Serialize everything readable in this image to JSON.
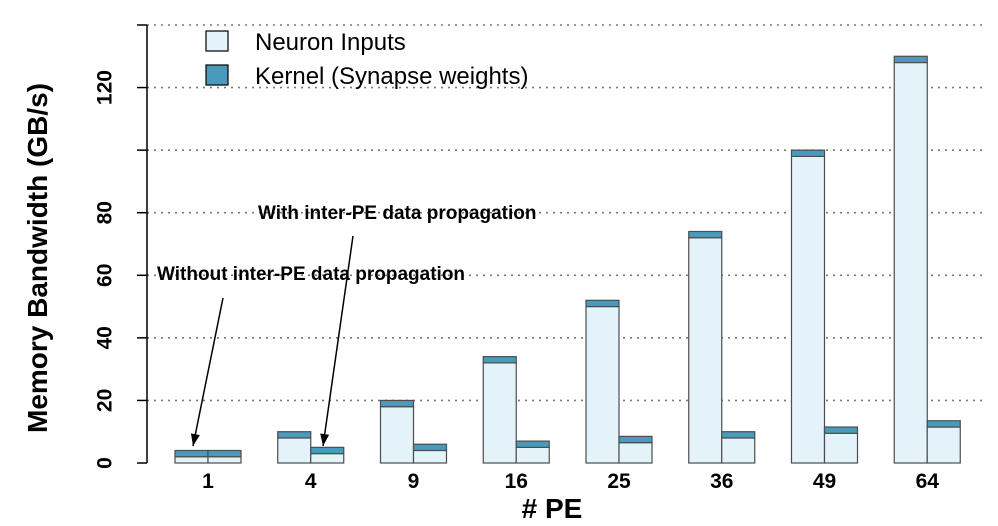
{
  "chart_data": {
    "type": "bar",
    "stacked": true,
    "grouped": true,
    "xlabel": "# PE",
    "ylabel": "Memory Bandwidth (GB/s)",
    "ylim": [
      0,
      140
    ],
    "yticks": [
      0,
      20,
      40,
      60,
      80,
      120
    ],
    "grid": "horizontal dotted, every 20",
    "legend_position": "top-left",
    "categories": [
      "1",
      "4",
      "9",
      "16",
      "25",
      "36",
      "49",
      "64"
    ],
    "groups": [
      "Without inter-PE data propagation",
      "With inter-PE data propagation"
    ],
    "series": [
      {
        "name": "Neuron Inputs",
        "color": "#e3f3f9",
        "without": [
          2,
          8,
          18,
          32,
          50,
          72,
          98,
          128
        ],
        "with": [
          2,
          3,
          4,
          5,
          6.5,
          8,
          9.5,
          11.5
        ]
      },
      {
        "name": "Kernel (Synapse weights)",
        "color": "#4a9bbb",
        "without": [
          2,
          2,
          2,
          2,
          2,
          2,
          2,
          2
        ],
        "with": [
          2,
          2,
          2,
          2,
          2,
          2,
          2,
          2
        ]
      }
    ],
    "annotations": [
      {
        "text": "Without inter-PE data propagation",
        "points_to": {
          "category": "1",
          "group": "without"
        }
      },
      {
        "text": "With inter-PE data propagation",
        "points_to": {
          "category": "4",
          "group": "with"
        }
      }
    ]
  }
}
